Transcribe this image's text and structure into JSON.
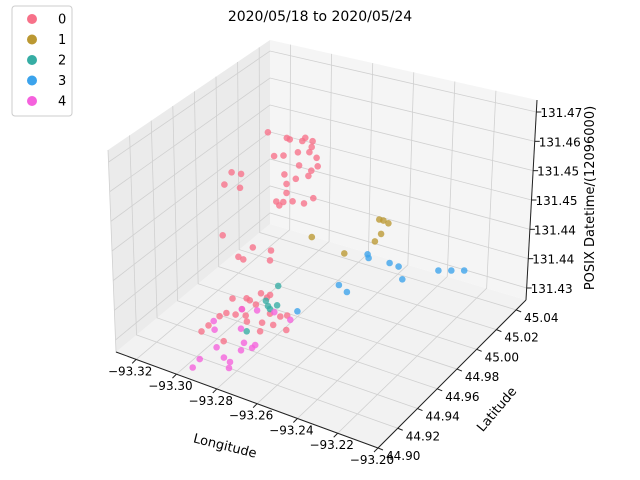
{
  "chart_data": {
    "type": "scatter",
    "projection": "3d",
    "title": "2020/05/18 to 2020/05/24",
    "xlabel": "Longitude",
    "ylabel": "Latitude",
    "zlabel": "POSIX Datetime/(12096000)",
    "x_ticks": [
      "−93.32",
      "−93.30",
      "−93.28",
      "−93.26",
      "−93.24",
      "−93.22",
      "−93.20"
    ],
    "y_ticks": [
      "44.90",
      "44.92",
      "44.94",
      "44.96",
      "44.98",
      "45.00",
      "45.02",
      "45.04"
    ],
    "z_ticks": [
      "131.43",
      "131.44",
      "131.44",
      "131.45",
      "131.45",
      "131.46",
      "131.47"
    ],
    "xlim": [
      -93.33,
      -93.2
    ],
    "ylim": [
      44.9,
      45.05
    ],
    "zlim": [
      131.43,
      131.475
    ],
    "grid": true,
    "legend": {
      "placement": "top-left",
      "entries": [
        {
          "label": "0",
          "color": "#f77189"
        },
        {
          "label": "1",
          "color": "#bb9832"
        },
        {
          "label": "2",
          "color": "#36ada4"
        },
        {
          "label": "3",
          "color": "#3ba3ec"
        },
        {
          "label": "4",
          "color": "#f561dd"
        }
      ]
    },
    "series": [
      {
        "name": "0",
        "color": "#f77189",
        "points": [
          [
            -93.292,
            44.975,
            131.4705
          ],
          [
            -93.288,
            44.985,
            131.468
          ],
          [
            -93.285,
            44.982,
            131.4685
          ],
          [
            -93.283,
            44.99,
            131.467
          ],
          [
            -93.281,
            44.995,
            131.465
          ],
          [
            -93.28,
            44.98,
            131.4665
          ],
          [
            -93.279,
            44.985,
            131.469
          ],
          [
            -93.278,
            44.99,
            131.4675
          ],
          [
            -93.277,
            44.985,
            131.466
          ],
          [
            -93.276,
            44.99,
            131.464
          ],
          [
            -93.289,
            44.975,
            131.4655
          ],
          [
            -93.287,
            44.98,
            131.465
          ],
          [
            -93.284,
            44.975,
            131.462
          ],
          [
            -93.282,
            44.985,
            131.4625
          ],
          [
            -93.281,
            44.98,
            131.4605
          ],
          [
            -93.283,
            44.975,
            131.46
          ],
          [
            -93.28,
            44.99,
            131.4595
          ],
          [
            -93.278,
            44.995,
            131.461
          ],
          [
            -93.276,
            44.985,
            131.462
          ],
          [
            -93.302,
            44.96,
            131.463
          ],
          [
            -93.3,
            44.965,
            131.462
          ],
          [
            -93.303,
            44.955,
            131.461
          ],
          [
            -93.298,
            44.96,
            131.46
          ],
          [
            -93.288,
            44.975,
            131.4555
          ],
          [
            -93.284,
            44.97,
            131.456
          ],
          [
            -93.28,
            44.975,
            131.4565
          ],
          [
            -93.277,
            44.98,
            131.4555
          ],
          [
            -93.275,
            44.985,
            131.456
          ],
          [
            -93.283,
            44.975,
            131.458
          ],
          [
            -93.282,
            44.97,
            131.457
          ],
          [
            -93.299,
            44.945,
            131.452
          ],
          [
            -93.289,
            44.945,
            131.448
          ],
          [
            -93.292,
            44.96,
            131.4475
          ],
          [
            -93.294,
            44.95,
            131.447
          ],
          [
            -93.283,
            44.96,
            131.448
          ],
          [
            -93.281,
            44.955,
            131.447
          ],
          [
            -93.285,
            44.94,
            131.441
          ],
          [
            -93.283,
            44.95,
            131.4405
          ],
          [
            -93.286,
            44.945,
            131.4395
          ],
          [
            -93.292,
            44.94,
            131.44
          ],
          [
            -93.29,
            44.93,
            131.439
          ],
          [
            -93.283,
            44.945,
            131.439
          ],
          [
            -93.281,
            44.955,
            131.4395
          ],
          [
            -93.28,
            44.95,
            131.44
          ],
          [
            -93.283,
            44.935,
            131.4385
          ],
          [
            -93.276,
            44.945,
            131.438
          ],
          [
            -93.27,
            44.95,
            131.4375
          ],
          [
            -93.288,
            44.935,
            131.438
          ],
          [
            -93.29,
            44.945,
            131.437
          ],
          [
            -93.296,
            44.935,
            131.4365
          ],
          [
            -93.285,
            44.94,
            131.436
          ],
          [
            -93.28,
            44.945,
            131.4355
          ],
          [
            -93.299,
            44.93,
            131.435
          ],
          [
            -93.3,
            44.925,
            131.4345
          ],
          [
            -93.289,
            44.925,
            131.434
          ],
          [
            -93.281,
            44.945,
            131.4335
          ],
          [
            -93.276,
            44.955,
            131.4355
          ],
          [
            -93.277,
            44.95,
            131.4345
          ],
          [
            -93.273,
            44.955,
            131.433
          ]
        ]
      },
      {
        "name": "1",
        "color": "#bb9832",
        "points": [
          [
            -93.245,
            44.99,
            131.454
          ],
          [
            -93.243,
            44.99,
            131.454
          ],
          [
            -93.243,
            44.995,
            131.4525
          ],
          [
            -93.244,
            44.99,
            131.451
          ],
          [
            -93.247,
            44.99,
            131.449
          ],
          [
            -93.257,
            44.98,
            131.447
          ],
          [
            -93.268,
            44.97,
            131.451
          ]
        ]
      },
      {
        "name": "2",
        "color": "#36ada4",
        "points": [
          [
            -93.277,
            44.955,
            131.442
          ],
          [
            -93.278,
            44.945,
            131.4405
          ],
          [
            -93.277,
            44.945,
            131.4395
          ],
          [
            -93.276,
            44.945,
            131.439
          ],
          [
            -93.275,
            44.95,
            131.439
          ],
          [
            -93.28,
            44.93,
            131.4365
          ]
        ]
      },
      {
        "name": "3",
        "color": "#3ba3ec",
        "points": [
          [
            -93.248,
            44.985,
            131.447
          ],
          [
            -93.245,
            44.98,
            131.4475
          ],
          [
            -93.242,
            44.995,
            131.444
          ],
          [
            -93.24,
            45.0,
            131.4425
          ],
          [
            -93.238,
            45.0,
            131.44
          ],
          [
            -93.262,
            44.985,
            131.4385
          ],
          [
            -93.258,
            44.985,
            131.4375
          ],
          [
            -93.23,
            45.02,
            131.439
          ],
          [
            -93.226,
            45.025,
            131.4385
          ],
          [
            -93.222,
            45.03,
            131.438
          ],
          [
            -93.27,
            44.96,
            131.4365
          ]
        ]
      },
      {
        "name": "4",
        "color": "#f561dd",
        "points": [
          [
            -93.29,
            44.945,
            131.437
          ],
          [
            -93.285,
            44.95,
            131.4365
          ],
          [
            -93.279,
            44.955,
            131.436
          ],
          [
            -93.271,
            44.955,
            131.4355
          ],
          [
            -93.299,
            44.935,
            131.435
          ],
          [
            -93.296,
            44.93,
            131.4345
          ],
          [
            -93.288,
            44.94,
            131.434
          ],
          [
            -93.29,
            44.92,
            131.4335
          ],
          [
            -93.284,
            44.935,
            131.4325
          ],
          [
            -93.28,
            44.935,
            131.432
          ],
          [
            -93.283,
            44.93,
            131.432
          ],
          [
            -93.289,
            44.925,
            131.4305
          ],
          [
            -93.296,
            44.915,
            131.431
          ],
          [
            -93.297,
            44.91,
            131.43
          ],
          [
            -93.284,
            44.92,
            131.43
          ],
          [
            -93.286,
            44.925,
            131.43
          ],
          [
            -93.281,
            44.94,
            131.4315
          ]
        ]
      }
    ]
  }
}
